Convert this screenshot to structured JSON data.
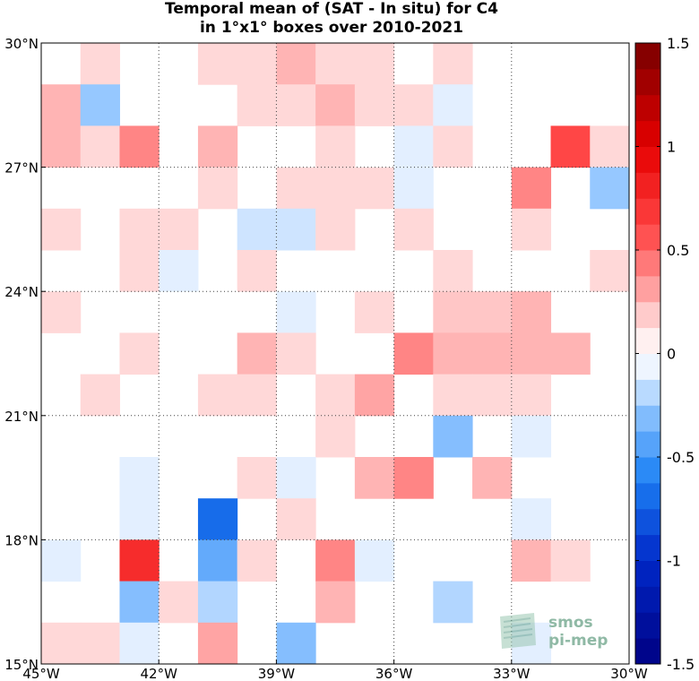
{
  "title": {
    "line1": "Temporal mean of (SAT - In situ) for C4",
    "line2": "in 1°x1° boxes over 2010-2021"
  },
  "watermark": {
    "line1": "smos",
    "line2": "pi-mep"
  },
  "chart_data": {
    "type": "heatmap",
    "title": "Temporal mean of (SAT - In situ) for C4 in 1°x1° boxes over 2010-2021",
    "xlabel": "",
    "ylabel": "",
    "lon_range": [
      -45,
      -30
    ],
    "lat_range": [
      15,
      30
    ],
    "x_ticks": [
      -45,
      -42,
      -39,
      -36,
      -33,
      -30
    ],
    "x_tick_labels": [
      "45°W",
      "42°W",
      "39°W",
      "36°W",
      "33°W",
      "30°W"
    ],
    "y_ticks": [
      15,
      18,
      21,
      24,
      27,
      30
    ],
    "y_tick_labels": [
      "15°N",
      "18°N",
      "21°N",
      "24°N",
      "27°N",
      "30°N"
    ],
    "grid": "dotted",
    "colorbar": {
      "range": [
        -1.5,
        1.5
      ],
      "ticks": [
        -1.5,
        -1,
        -0.5,
        0,
        0.5,
        1,
        1.5
      ],
      "tick_labels": [
        "-1.5",
        "-1",
        "-0.5",
        "0",
        "0.5",
        "1",
        "1.5"
      ],
      "position": "right"
    },
    "cell_size_deg": 1,
    "row_order": "north_to_south",
    "col_order": "west_to_east",
    "lats_centers": [
      29.5,
      28.5,
      27.5,
      26.5,
      25.5,
      24.5,
      23.5,
      22.5,
      21.5,
      20.5,
      19.5,
      18.5,
      17.5,
      16.5,
      15.5
    ],
    "lons_centers": [
      -44.5,
      -43.5,
      -42.5,
      -41.5,
      -40.5,
      -39.5,
      -38.5,
      -37.5,
      -36.5,
      -35.5,
      -34.5,
      -33.5,
      -32.5,
      -31.5,
      -30.5
    ],
    "values": [
      [
        null,
        0.15,
        null,
        null,
        0.15,
        0.15,
        0.25,
        0.15,
        0.15,
        null,
        0.15,
        null,
        null,
        null,
        null
      ],
      [
        0.25,
        -0.25,
        null,
        null,
        null,
        0.15,
        0.15,
        0.25,
        0.15,
        0.15,
        -0.1,
        null,
        null,
        null,
        null
      ],
      [
        0.25,
        0.15,
        0.4,
        null,
        0.25,
        null,
        null,
        0.15,
        null,
        -0.1,
        0.15,
        null,
        null,
        0.6,
        0.15
      ],
      [
        null,
        null,
        null,
        null,
        0.15,
        null,
        0.15,
        0.15,
        0.15,
        -0.1,
        null,
        null,
        0.4,
        null,
        -0.25
      ],
      [
        0.15,
        null,
        0.15,
        0.15,
        null,
        -0.15,
        -0.15,
        0.15,
        null,
        0.15,
        null,
        null,
        0.15,
        null,
        null
      ],
      [
        null,
        null,
        0.15,
        -0.1,
        null,
        0.15,
        null,
        null,
        null,
        null,
        0.15,
        null,
        null,
        null,
        0.15
      ],
      [
        0.15,
        null,
        null,
        null,
        null,
        null,
        -0.1,
        null,
        0.15,
        null,
        0.2,
        0.2,
        0.25,
        null,
        null
      ],
      [
        null,
        null,
        0.15,
        null,
        null,
        0.25,
        0.15,
        null,
        null,
        0.4,
        0.25,
        0.25,
        0.25,
        0.25,
        null
      ],
      [
        null,
        0.15,
        null,
        null,
        0.15,
        0.15,
        null,
        0.15,
        0.3,
        null,
        0.15,
        0.15,
        0.15,
        null,
        null
      ],
      [
        null,
        null,
        null,
        null,
        null,
        null,
        null,
        0.15,
        null,
        null,
        -0.3,
        null,
        -0.1,
        null,
        null
      ],
      [
        null,
        null,
        -0.1,
        null,
        null,
        0.15,
        -0.1,
        null,
        0.25,
        0.4,
        null,
        0.25,
        null,
        null,
        null
      ],
      [
        null,
        null,
        -0.1,
        null,
        -0.7,
        null,
        0.15,
        null,
        null,
        null,
        null,
        null,
        -0.1,
        null,
        null
      ],
      [
        -0.1,
        null,
        0.75,
        null,
        -0.4,
        0.15,
        null,
        0.4,
        -0.1,
        null,
        null,
        null,
        0.25,
        0.15,
        null
      ],
      [
        null,
        null,
        -0.3,
        0.15,
        -0.2,
        null,
        null,
        0.25,
        null,
        null,
        -0.2,
        null,
        null,
        null,
        null
      ],
      [
        0.15,
        0.15,
        -0.1,
        null,
        0.3,
        null,
        -0.3,
        null,
        null,
        null,
        null,
        null,
        -0.1,
        null,
        null
      ]
    ]
  }
}
